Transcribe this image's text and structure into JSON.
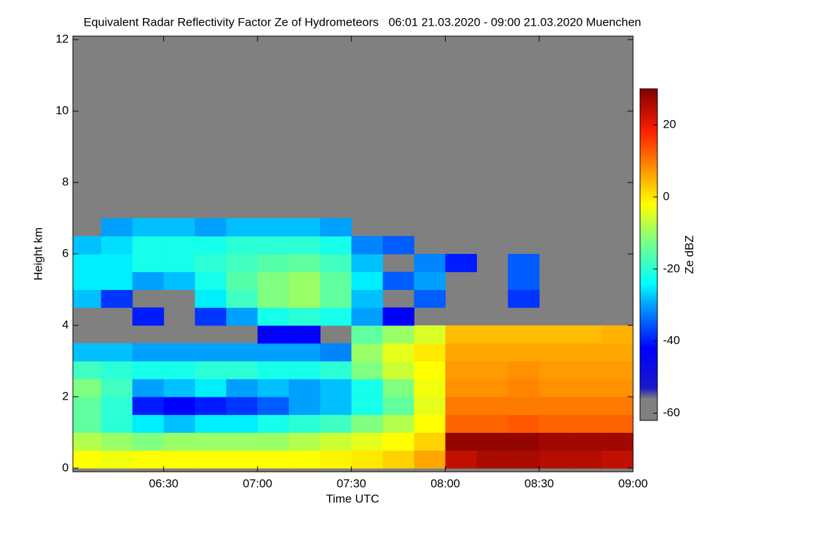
{
  "chart_data": {
    "type": "heatmap",
    "title": "Equivalent Radar Reflectivity Factor Ze of Hydrometeors   06:01 21.03.2020 - 09:00 21.03.2020 Muenchen",
    "x_label": "Time UTC",
    "y_label": "Height km",
    "colorbar_label": "Ze dBZ",
    "xlim": [
      "06:01",
      "09:00"
    ],
    "xticks": [
      "06:30",
      "07:00",
      "07:30",
      "08:00",
      "08:30",
      "09:00"
    ],
    "ylim": [
      -0.1,
      12.1
    ],
    "yticks": [
      0,
      2,
      4,
      6,
      8,
      10,
      12
    ],
    "clim": [
      -62,
      30
    ],
    "cticks": [
      -60,
      -40,
      -20,
      0,
      20
    ],
    "background": "#808080",
    "colormap": [
      {
        "value": -62,
        "color": "#808080"
      },
      {
        "value": -56,
        "color": "#808080"
      },
      {
        "value": -53,
        "color": "#1818c8"
      },
      {
        "value": -42,
        "color": "#0000ff"
      },
      {
        "value": -30,
        "color": "#00a0ff"
      },
      {
        "value": -24,
        "color": "#00ffff"
      },
      {
        "value": -12,
        "color": "#80ff80"
      },
      {
        "value": -2,
        "color": "#ffff00"
      },
      {
        "value": 8,
        "color": "#ff9000"
      },
      {
        "value": 18,
        "color": "#ff2000"
      },
      {
        "value": 30,
        "color": "#800000"
      }
    ],
    "x_edges": [
      "06:01",
      "06:10",
      "06:20",
      "06:30",
      "06:40",
      "06:50",
      "07:00",
      "07:10",
      "07:20",
      "07:30",
      "07:40",
      "07:50",
      "08:00",
      "08:10",
      "08:20",
      "08:30",
      "08:40",
      "08:50",
      "09:00"
    ],
    "y_edges": [
      0,
      0.5,
      1,
      1.5,
      2,
      2.5,
      3,
      3.5,
      4,
      4.5,
      5,
      5.5,
      6,
      6.5,
      7
    ],
    "z": [
      [
        -2,
        -3,
        -2,
        -2,
        -2,
        -2,
        -2,
        -2,
        -1,
        0,
        2,
        6,
        24,
        26,
        26,
        25,
        25,
        24
      ],
      [
        -8,
        -10,
        -12,
        -10,
        -10,
        -10,
        -10,
        -8,
        -6,
        -4,
        -2,
        2,
        28,
        28,
        28,
        27,
        27,
        27
      ],
      [
        -15,
        -20,
        -25,
        -28,
        -25,
        -25,
        -22,
        -20,
        -18,
        -12,
        -8,
        -2,
        12,
        12,
        13,
        12,
        12,
        12
      ],
      [
        -15,
        -20,
        -40,
        -42,
        -40,
        -38,
        -35,
        -30,
        -28,
        -22,
        -15,
        -4,
        10,
        10,
        10,
        10,
        10,
        10
      ],
      [
        -12,
        -18,
        -30,
        -28,
        -25,
        -30,
        -28,
        -30,
        -28,
        -22,
        -12,
        -3,
        8,
        8,
        9,
        8,
        8,
        8
      ],
      [
        -18,
        -20,
        -22,
        -22,
        -20,
        -20,
        -22,
        -22,
        -20,
        -12,
        -6,
        -2,
        7,
        7,
        8,
        7,
        7,
        7
      ],
      [
        -28,
        -28,
        -30,
        -30,
        -30,
        -30,
        -30,
        -30,
        -32,
        -10,
        -4,
        0,
        6,
        6,
        6,
        6,
        6,
        6
      ],
      [
        null,
        null,
        null,
        null,
        null,
        null,
        -42,
        -42,
        null,
        -15,
        -10,
        -5,
        4,
        4,
        4,
        4,
        4,
        5
      ],
      [
        null,
        null,
        -40,
        null,
        -38,
        -30,
        -22,
        -20,
        -22,
        -30,
        -42,
        null,
        null,
        null,
        null,
        null,
        null,
        null
      ],
      [
        -28,
        -38,
        null,
        null,
        -25,
        -18,
        -12,
        -10,
        -15,
        -28,
        null,
        -35,
        null,
        null,
        -38,
        null,
        null,
        null
      ],
      [
        -25,
        -25,
        -30,
        -28,
        -22,
        -16,
        -12,
        -10,
        -15,
        -25,
        -35,
        -30,
        null,
        null,
        -35,
        null,
        null,
        null
      ],
      [
        -25,
        -25,
        -22,
        -22,
        -20,
        -18,
        -16,
        -15,
        -18,
        -28,
        null,
        -32,
        -40,
        null,
        -35,
        null,
        null,
        null
      ],
      [
        -28,
        -26,
        -22,
        -22,
        -22,
        -20,
        -20,
        -20,
        -22,
        -32,
        -35,
        null,
        null,
        null,
        null,
        null,
        null,
        null
      ],
      [
        null,
        -30,
        -28,
        -28,
        -30,
        -28,
        -28,
        -28,
        -30,
        null,
        null,
        null,
        null,
        null,
        null,
        null,
        null,
        null
      ]
    ]
  }
}
